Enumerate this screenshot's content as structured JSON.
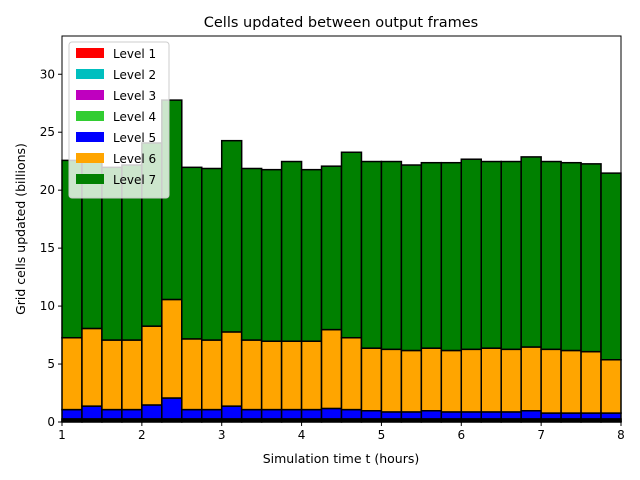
{
  "chart_data": {
    "type": "bar",
    "stacked": true,
    "title": "Cells updated between output frames",
    "xlabel": "Simulation time t (hours)",
    "ylabel": "Grid cells updated (billions)",
    "xlim": [
      1,
      8
    ],
    "ylim": [
      0,
      33.3
    ],
    "xticks": [
      "1",
      "2",
      "3",
      "4",
      "5",
      "6",
      "7",
      "8"
    ],
    "yticks": [
      "0",
      "5",
      "10",
      "15",
      "20",
      "25",
      "30"
    ],
    "grid": false,
    "legend_position": "top-left",
    "bar_start_hours": [
      1.0,
      1.25,
      1.5,
      1.75,
      2.0,
      2.25,
      2.5,
      2.75,
      3.0,
      3.25,
      3.5,
      3.75,
      4.0,
      4.25,
      4.5,
      4.75,
      5.0,
      5.25,
      5.5,
      5.75,
      6.0,
      6.25,
      6.5,
      6.75,
      7.0,
      7.25,
      7.5,
      7.75
    ],
    "bar_width_hours": 0.25,
    "series": [
      {
        "name": "Level 1",
        "color": "#ff0000",
        "values": [
          0.02,
          0.02,
          0.02,
          0.02,
          0.02,
          0.02,
          0.02,
          0.02,
          0.02,
          0.02,
          0.02,
          0.02,
          0.02,
          0.02,
          0.02,
          0.02,
          0.02,
          0.02,
          0.02,
          0.02,
          0.02,
          0.02,
          0.02,
          0.02,
          0.02,
          0.02,
          0.02,
          0.02
        ]
      },
      {
        "name": "Level 2",
        "color": "#00bfbf",
        "values": [
          0.05,
          0.05,
          0.05,
          0.05,
          0.05,
          0.05,
          0.05,
          0.05,
          0.05,
          0.05,
          0.05,
          0.05,
          0.05,
          0.05,
          0.05,
          0.05,
          0.05,
          0.05,
          0.05,
          0.05,
          0.05,
          0.05,
          0.05,
          0.05,
          0.05,
          0.05,
          0.05,
          0.05
        ]
      },
      {
        "name": "Level 3",
        "color": "#bf00bf",
        "values": [
          0.1,
          0.1,
          0.1,
          0.1,
          0.1,
          0.1,
          0.1,
          0.1,
          0.1,
          0.1,
          0.1,
          0.1,
          0.1,
          0.1,
          0.1,
          0.1,
          0.1,
          0.1,
          0.1,
          0.1,
          0.1,
          0.1,
          0.1,
          0.1,
          0.1,
          0.1,
          0.1,
          0.1
        ]
      },
      {
        "name": "Level 4",
        "color": "#32cd32",
        "values": [
          0.1,
          0.1,
          0.1,
          0.1,
          0.1,
          0.1,
          0.1,
          0.1,
          0.1,
          0.1,
          0.1,
          0.1,
          0.1,
          0.1,
          0.1,
          0.1,
          0.1,
          0.1,
          0.1,
          0.1,
          0.1,
          0.1,
          0.1,
          0.1,
          0.1,
          0.1,
          0.1,
          0.1
        ]
      },
      {
        "name": "Level 5",
        "color": "#0000ff",
        "values": [
          0.8,
          1.1,
          0.8,
          0.8,
          1.2,
          1.8,
          0.8,
          0.8,
          1.1,
          0.8,
          0.8,
          0.8,
          0.8,
          0.9,
          0.8,
          0.7,
          0.6,
          0.6,
          0.7,
          0.6,
          0.6,
          0.6,
          0.6,
          0.7,
          0.5,
          0.5,
          0.5,
          0.5
        ]
      },
      {
        "name": "Level 6",
        "color": "#ffa500",
        "values": [
          6.2,
          6.7,
          6.0,
          6.0,
          6.8,
          8.5,
          6.1,
          6.0,
          6.4,
          6.0,
          5.9,
          5.9,
          5.9,
          6.8,
          6.2,
          5.4,
          5.4,
          5.3,
          5.4,
          5.3,
          5.4,
          5.5,
          5.4,
          5.5,
          5.5,
          5.4,
          5.3,
          4.6
        ]
      },
      {
        "name": "Level 7",
        "color": "#008000",
        "values": [
          15.3,
          14.8,
          14.9,
          15.1,
          15.8,
          17.2,
          14.8,
          14.8,
          16.5,
          14.8,
          14.8,
          15.5,
          14.8,
          14.1,
          16.0,
          16.1,
          16.2,
          16.0,
          16.0,
          16.2,
          16.4,
          16.1,
          16.2,
          16.4,
          16.2,
          16.2,
          16.2,
          16.1
        ]
      }
    ]
  }
}
